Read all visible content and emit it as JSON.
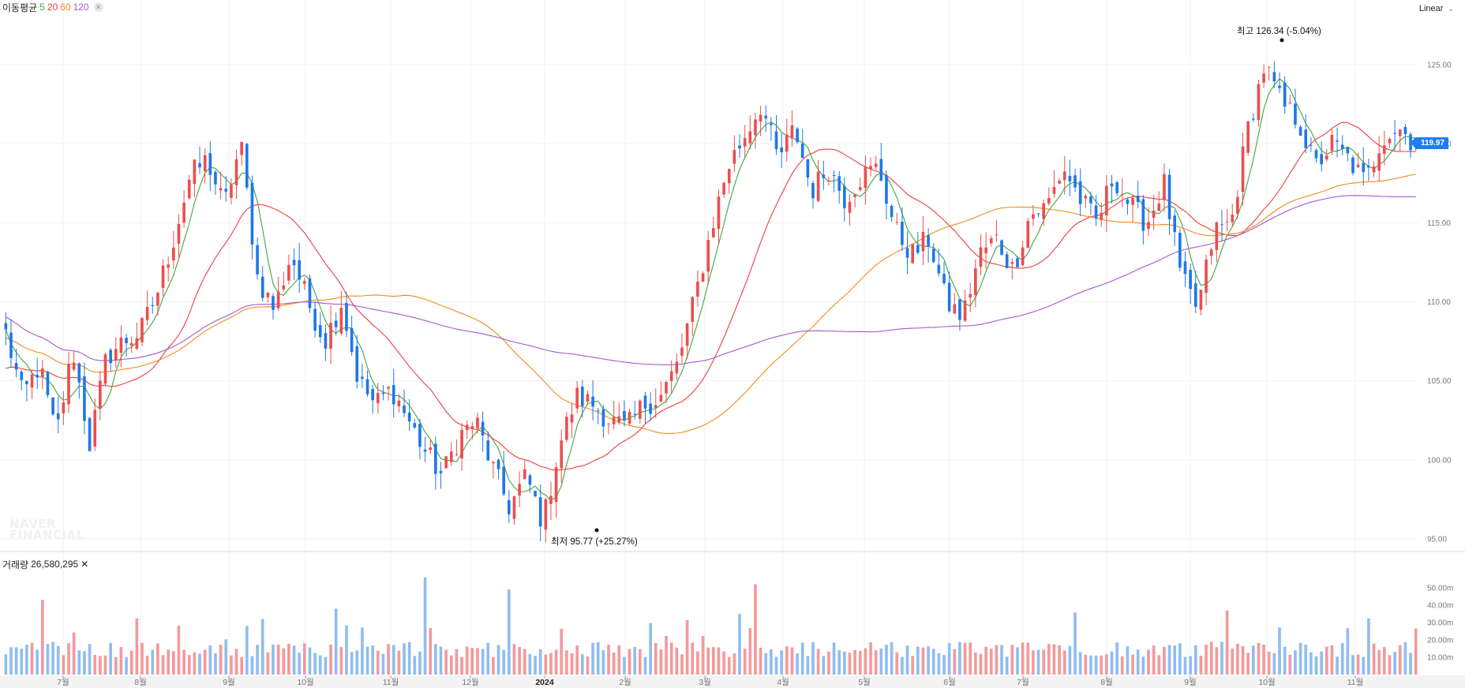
{
  "legend": {
    "title": "이동평균",
    "ma": [
      {
        "label": "5",
        "color": "#3fa63f"
      },
      {
        "label": "20",
        "color": "#ef3e3e"
      },
      {
        "label": "60",
        "color": "#f28b1d"
      },
      {
        "label": "120",
        "color": "#a15ad1"
      }
    ],
    "close_icon": "close-icon"
  },
  "scale_toggle": {
    "label": "Linear",
    "icon": "chevron-down-icon"
  },
  "watermark": {
    "line1": "NAVER",
    "line2": "FINANCIAL"
  },
  "annotations": {
    "high": "최고 126.34 (-5.04%)",
    "low": "최저 95.77 (+25.27%)"
  },
  "current_price": "119.97",
  "volume_legend": {
    "label": "거래량",
    "value": "26,580,295"
  },
  "colors": {
    "up": "#ec4e4e",
    "down": "#1f78e6",
    "up_volume": "#f4999b",
    "down_volume": "#8fbdf0",
    "grid": "#f2f2f2",
    "axis_text": "#777777"
  },
  "chart_data": {
    "type": "candlestick",
    "price_axis": {
      "ticks": [
        "95.00",
        "100.00",
        "105.00",
        "110.00",
        "115.00",
        "120.00",
        "125.00"
      ],
      "range": [
        94.5,
        126.5
      ]
    },
    "volume_axis": {
      "ticks": [
        "10.00m",
        "20.00m",
        "30.00m",
        "40.00m",
        "50.00m"
      ],
      "range": [
        0,
        58
      ]
    },
    "x_axis": {
      "ticks": [
        "7월",
        "8월",
        "9월",
        "10월",
        "11월",
        "12월",
        "2024",
        "2월",
        "3월",
        "4월",
        "5월",
        "6월",
        "7월",
        "8월",
        "9월",
        "10월",
        "11월"
      ]
    },
    "close_path": [
      108.0,
      104.0,
      106.0,
      101.5,
      107.0,
      101.0,
      106.5,
      107.5,
      108.0,
      110.5,
      114.0,
      118.0,
      119.0,
      116.0,
      120.0,
      111.5,
      109.5,
      113.0,
      110.0,
      107.5,
      110.0,
      105.0,
      103.5,
      104.5,
      102.5,
      100.5,
      99.0,
      101.5,
      102.5,
      99.5,
      97.0,
      99.0,
      96.0,
      101.0,
      104.0,
      103.5,
      102.5,
      102.0,
      103.5,
      104.0,
      106.0,
      110.0,
      114.5,
      118.5,
      120.5,
      122.5,
      119.0,
      121.0,
      117.0,
      118.5,
      116.5,
      118.0,
      118.5,
      114.5,
      113.0,
      114.0,
      110.0,
      109.0,
      113.0,
      114.0,
      112.0,
      115.5,
      116.0,
      118.5,
      116.5,
      115.0,
      118.0,
      116.0,
      115.0,
      117.5,
      111.5,
      109.5,
      114.5,
      115.0,
      121.0,
      125.0,
      122.5,
      121.5,
      118.5,
      120.0,
      119.0,
      117.5,
      120.5,
      121.0,
      119.97
    ],
    "ma_smoothing": [
      5,
      20,
      60,
      120
    ],
    "ma_warmup": [
      [],
      [
        105.8,
        105.6,
        105.4,
        105.3,
        105.3,
        105.2,
        105.5
      ],
      [
        107.8,
        108.3,
        108.6,
        108.7,
        108.2,
        107.2,
        106.5,
        106.0
      ],
      [
        110.2,
        110.1,
        110.0,
        109.8,
        109.6,
        109.2,
        108.9,
        108.5,
        108.1,
        107.9,
        108.0
      ]
    ],
    "volume_overview": "about 270 daily volume bars, mostly 10m–20m with spikes up to about 56m (Oct) and 52m (Jun)",
    "high": 126.34,
    "low": 95.77,
    "last_close": 119.97,
    "last_volume": 26580295
  }
}
